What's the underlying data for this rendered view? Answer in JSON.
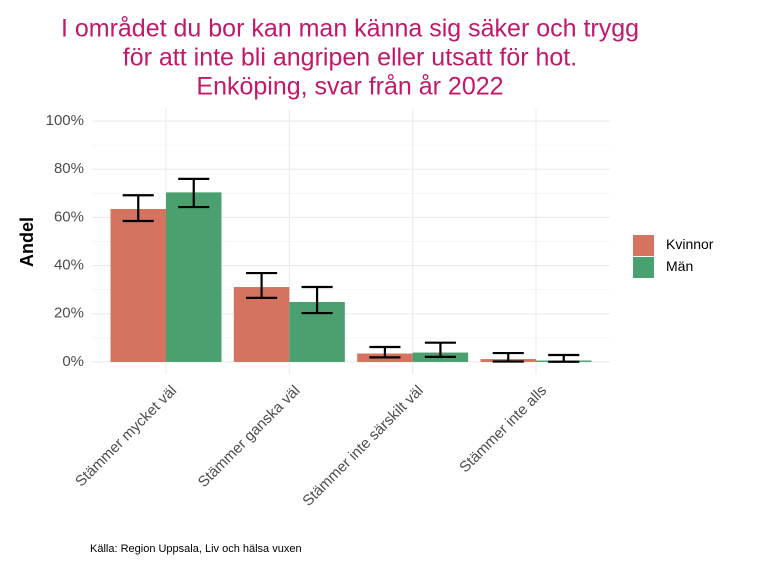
{
  "chart_data": {
    "type": "bar",
    "title": [
      "I området du bor kan man känna sig säker och trygg",
      "för att inte bli angripen eller utsatt för hot.",
      "Enköping, svar från år 2022"
    ],
    "y_label": "Andel",
    "caption": "Källa: Region Uppsala, Liv och hälsa vuxen",
    "categories": [
      "Stämmer mycket väl",
      "Stämmer ganska väl",
      "Stämmer inte särskilt väl",
      "Stämmer inte alls"
    ],
    "series": [
      {
        "name": "Kvinnor",
        "color": "#d4735f",
        "values": [
          63.5,
          31.1,
          3.5,
          1.2
        ],
        "lower": [
          58.5,
          26.6,
          1.9,
          0.2
        ],
        "upper": [
          69.2,
          36.9,
          6.2,
          3.7
        ]
      },
      {
        "name": "Män",
        "color": "#4aa06f",
        "values": [
          70.4,
          24.9,
          3.9,
          0.6
        ],
        "lower": [
          64.3,
          20.3,
          2.1,
          0.1
        ],
        "upper": [
          76.0,
          31.1,
          8.0,
          2.9
        ]
      }
    ],
    "ylim": [
      -5,
      105
    ],
    "yticks": [
      {
        "value": 0,
        "label": "0%"
      },
      {
        "value": 20,
        "label": "20%"
      },
      {
        "value": 40,
        "label": "40%"
      },
      {
        "value": 60,
        "label": "60%"
      },
      {
        "value": 80,
        "label": "80%"
      },
      {
        "value": 100,
        "label": "100%"
      }
    ],
    "grid": true,
    "legend": "right"
  }
}
